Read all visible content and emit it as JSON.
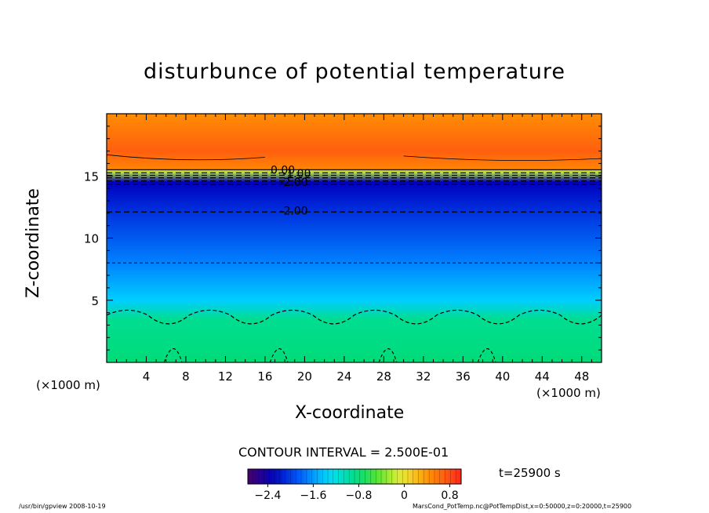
{
  "chart_data": {
    "type": "heatmap",
    "title": "disturbunce of potential temperature",
    "xlabel": "X-coordinate",
    "ylabel": "Z-coordinate",
    "x_unit": "(×1000 m)",
    "xlim": [
      0,
      50
    ],
    "ylim": [
      0,
      20
    ],
    "x_ticks": [
      4,
      8,
      12,
      16,
      20,
      24,
      28,
      32,
      36,
      40,
      44,
      48
    ],
    "y_ticks": [
      5,
      10,
      15
    ],
    "contour_interval_label": "CONTOUR INTERVAL = 2.500E-01",
    "contour_labels": [
      {
        "text": "0.00",
        "x": 17.8,
        "z": 15.5
      },
      {
        "text": "-1.00",
        "x": 19.2,
        "z": 15.2
      },
      {
        "text": "-2.00",
        "x": 18.9,
        "z": 14.5
      },
      {
        "text": "-2.00",
        "x": 18.9,
        "z": 12.2
      }
    ],
    "value_profile": [
      {
        "z": 0,
        "value": -0.8
      },
      {
        "z": 3.5,
        "value": -0.9
      },
      {
        "z": 5,
        "value": -1.4
      },
      {
        "z": 8,
        "value": -1.7
      },
      {
        "z": 12,
        "value": -2.05
      },
      {
        "z": 14.5,
        "value": -2.3
      },
      {
        "z": 15.3,
        "value": -0.2
      },
      {
        "z": 15.6,
        "value": 0.5
      },
      {
        "z": 17,
        "value": 0.7
      },
      {
        "z": 20,
        "value": 0.45
      }
    ],
    "colorbar": {
      "ticks": [
        -2.4,
        -1.6,
        -0.8,
        0,
        0.8
      ],
      "tick_labels": [
        "−2.4",
        "−1.6",
        "−0.8",
        "0",
        "0.8"
      ],
      "range": [
        -2.75,
        1.0
      ]
    },
    "time_label": "t=25900 s"
  },
  "footer": {
    "left": "/usr/bin/gpview   2008-10-19",
    "right": "MarsCond_PotTemp.nc@PotTempDist,x=0:50000,z=0:20000,t=25900"
  }
}
